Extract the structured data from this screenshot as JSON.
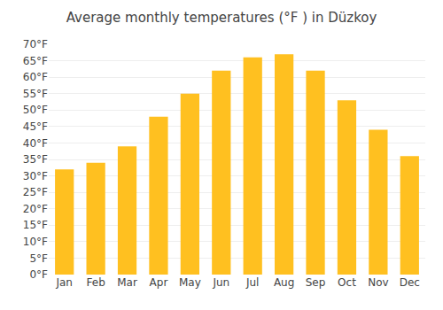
{
  "chart_data": {
    "type": "bar",
    "title": "Average monthly temperatures (°F ) in Düzkoy",
    "categories": [
      "Jan",
      "Feb",
      "Mar",
      "Apr",
      "May",
      "Jun",
      "Jul",
      "Aug",
      "Sep",
      "Oct",
      "Nov",
      "Dec"
    ],
    "values": [
      32,
      34,
      39,
      48,
      55,
      62,
      66,
      67,
      62,
      53,
      44,
      36
    ],
    "color": "#FFC020",
    "ylim": [
      0,
      70
    ],
    "yticks": [
      {
        "value": 0,
        "label": "0°F"
      },
      {
        "value": 5,
        "label": "5°F"
      },
      {
        "value": 10,
        "label": "10°F"
      },
      {
        "value": 15,
        "label": "15°F"
      },
      {
        "value": 20,
        "label": "20°F"
      },
      {
        "value": 25,
        "label": "25°F"
      },
      {
        "value": 30,
        "label": "30°F"
      },
      {
        "value": 35,
        "label": "35°F"
      },
      {
        "value": 40,
        "label": "40°F"
      },
      {
        "value": 45,
        "label": "45°F"
      },
      {
        "value": 50,
        "label": "50°F"
      },
      {
        "value": 55,
        "label": "55°F"
      },
      {
        "value": 60,
        "label": "60°F"
      },
      {
        "value": 65,
        "label": "65°F"
      },
      {
        "value": 70,
        "label": "70°F"
      }
    ],
    "grid": true
  }
}
